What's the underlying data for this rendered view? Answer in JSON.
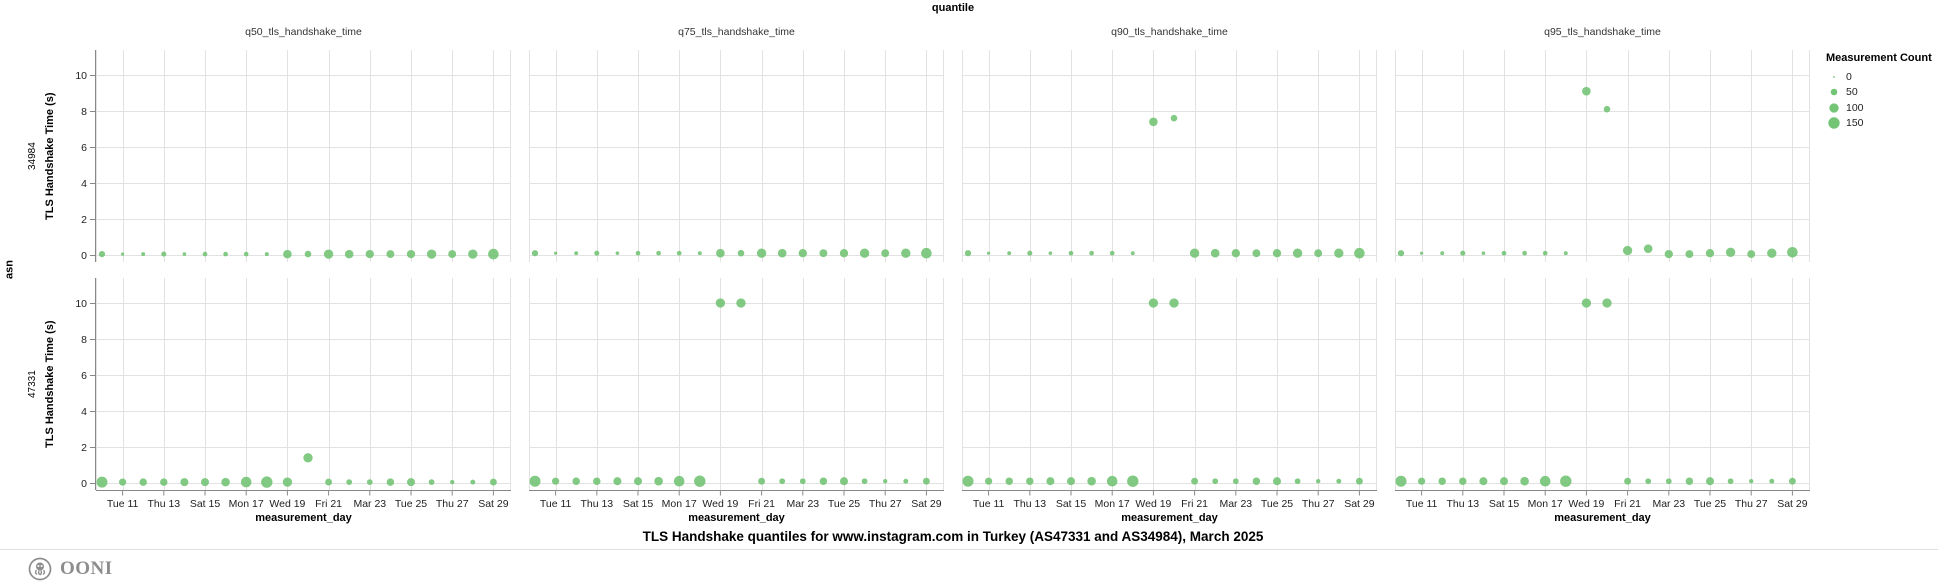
{
  "header": {
    "facet_field_label": "quantile"
  },
  "axes": {
    "y_title": "TLS Handshake Time (s)",
    "x_title": "measurement_day",
    "row_field_label": "asn",
    "y_ticks": [
      0,
      2,
      4,
      6,
      8,
      10
    ]
  },
  "legend": {
    "title": "Measurement Count",
    "items": [
      {
        "label": "0",
        "count": 0
      },
      {
        "label": "50",
        "count": 50
      },
      {
        "label": "100",
        "count": 100
      },
      {
        "label": "150",
        "count": 150
      }
    ]
  },
  "footer": {
    "title": "TLS Handshake quantiles for www.instagram.com in Turkey (AS47331 and AS34984), March 2025",
    "brand": "OONI"
  },
  "colors": {
    "dot": "#74c476",
    "grid": "#e2e2e2",
    "axis": "#888888",
    "text": "#222222",
    "brand_gray": "#8d8d8d"
  },
  "chart_data": {
    "type": "scatter",
    "facet": {
      "column_field": "quantile",
      "row_field": "asn"
    },
    "columns": [
      "q50_tls_handshake_time",
      "q75_tls_handshake_time",
      "q90_tls_handshake_time",
      "q95_tls_handshake_time"
    ],
    "column_keys": [
      "q50",
      "q75",
      "q90",
      "q95"
    ],
    "rows": [
      "34984",
      "47331"
    ],
    "xlabel": "measurement_day",
    "ylabel": "TLS Handshake Time (s)",
    "ylim": [
      0,
      10.8
    ],
    "x_period": "March 2025, days 10-29",
    "grid": true,
    "legend_position": "top-right",
    "size_encoding": {
      "field": "Measurement Count",
      "legend_values": [
        0,
        50,
        100,
        150
      ]
    },
    "x_ticks": [
      {
        "day": 11,
        "label": "Tue 11"
      },
      {
        "day": 13,
        "label": "Thu 13"
      },
      {
        "day": 15,
        "label": "Sat 15"
      },
      {
        "day": 17,
        "label": "Mon 17"
      },
      {
        "day": 19,
        "label": "Wed 19"
      },
      {
        "day": 21,
        "label": "Fri 21"
      },
      {
        "day": 23,
        "label": "Mar 23"
      },
      {
        "day": 25,
        "label": "Tue 25"
      },
      {
        "day": 27,
        "label": "Thu 27"
      },
      {
        "day": 29,
        "label": "Sat 29"
      }
    ],
    "series": [
      {
        "asn": "34984",
        "points": [
          {
            "day": 10,
            "count": 45,
            "q50": 0.05,
            "q75": 0.1,
            "q90": 0.1,
            "q95": 0.1
          },
          {
            "day": 11,
            "count": 12,
            "q50": 0.05,
            "q75": 0.1,
            "q90": 0.1,
            "q95": 0.1
          },
          {
            "day": 12,
            "count": 18,
            "q50": 0.05,
            "q75": 0.1,
            "q90": 0.1,
            "q95": 0.1
          },
          {
            "day": 13,
            "count": 30,
            "q50": 0.05,
            "q75": 0.1,
            "q90": 0.1,
            "q95": 0.1
          },
          {
            "day": 14,
            "count": 15,
            "q50": 0.05,
            "q75": 0.1,
            "q90": 0.1,
            "q95": 0.1
          },
          {
            "day": 15,
            "count": 25,
            "q50": 0.05,
            "q75": 0.1,
            "q90": 0.1,
            "q95": 0.1
          },
          {
            "day": 16,
            "count": 25,
            "q50": 0.05,
            "q75": 0.1,
            "q90": 0.1,
            "q95": 0.1
          },
          {
            "day": 17,
            "count": 25,
            "q50": 0.05,
            "q75": 0.1,
            "q90": 0.1,
            "q95": 0.1
          },
          {
            "day": 18,
            "count": 18,
            "q50": 0.05,
            "q75": 0.1,
            "q90": 0.1,
            "q95": 0.1
          },
          {
            "day": 19,
            "count": 85,
            "q50": 0.05,
            "q75": 0.1,
            "q90": 7.4,
            "q95": 9.1
          },
          {
            "day": 20,
            "count": 50,
            "q50": 0.05,
            "q75": 0.1,
            "q90": 7.6,
            "q95": 8.1
          },
          {
            "day": 21,
            "count": 100,
            "q50": 0.05,
            "q75": 0.1,
            "q90": 0.1,
            "q95": 0.25
          },
          {
            "day": 22,
            "count": 85,
            "q50": 0.05,
            "q75": 0.1,
            "q90": 0.1,
            "q95": 0.35
          },
          {
            "day": 23,
            "count": 80,
            "q50": 0.05,
            "q75": 0.1,
            "q90": 0.1,
            "q95": 0.05
          },
          {
            "day": 24,
            "count": 72,
            "q50": 0.05,
            "q75": 0.1,
            "q90": 0.1,
            "q95": 0.05
          },
          {
            "day": 25,
            "count": 80,
            "q50": 0.05,
            "q75": 0.1,
            "q90": 0.1,
            "q95": 0.1
          },
          {
            "day": 26,
            "count": 100,
            "q50": 0.05,
            "q75": 0.1,
            "q90": 0.1,
            "q95": 0.15
          },
          {
            "day": 27,
            "count": 72,
            "q50": 0.05,
            "q75": 0.1,
            "q90": 0.1,
            "q95": 0.05
          },
          {
            "day": 28,
            "count": 100,
            "q50": 0.05,
            "q75": 0.1,
            "q90": 0.1,
            "q95": 0.1
          },
          {
            "day": 29,
            "count": 130,
            "q50": 0.05,
            "q75": 0.1,
            "q90": 0.1,
            "q95": 0.15
          }
        ]
      },
      {
        "asn": "47331",
        "points": [
          {
            "day": 10,
            "count": 140,
            "q50": 0.05,
            "q75": 0.1,
            "q90": 0.1,
            "q95": 0.1
          },
          {
            "day": 11,
            "count": 60,
            "q50": 0.05,
            "q75": 0.1,
            "q90": 0.1,
            "q95": 0.1
          },
          {
            "day": 12,
            "count": 65,
            "q50": 0.05,
            "q75": 0.1,
            "q90": 0.1,
            "q95": 0.1
          },
          {
            "day": 13,
            "count": 65,
            "q50": 0.05,
            "q75": 0.1,
            "q90": 0.1,
            "q95": 0.1
          },
          {
            "day": 14,
            "count": 75,
            "q50": 0.05,
            "q75": 0.1,
            "q90": 0.1,
            "q95": 0.1
          },
          {
            "day": 15,
            "count": 75,
            "q50": 0.05,
            "q75": 0.1,
            "q90": 0.1,
            "q95": 0.1
          },
          {
            "day": 16,
            "count": 85,
            "q50": 0.05,
            "q75": 0.1,
            "q90": 0.1,
            "q95": 0.1
          },
          {
            "day": 17,
            "count": 130,
            "q50": 0.05,
            "q75": 0.1,
            "q90": 0.1,
            "q95": 0.1
          },
          {
            "day": 18,
            "count": 150,
            "q50": 0.05,
            "q75": 0.1,
            "q90": 0.1,
            "q95": 0.1
          },
          {
            "day": 19,
            "count": 100,
            "q50": 0.05,
            "q75": 10.0,
            "q90": 10.0,
            "q95": 10.0
          },
          {
            "day": 20,
            "count": 100,
            "q50": 1.4,
            "q75": 10.0,
            "q90": 10.0,
            "q95": 10.0
          },
          {
            "day": 21,
            "count": 55,
            "q50": 0.05,
            "q75": 0.1,
            "q90": 0.1,
            "q95": 0.1
          },
          {
            "day": 22,
            "count": 38,
            "q50": 0.05,
            "q75": 0.1,
            "q90": 0.1,
            "q95": 0.1
          },
          {
            "day": 23,
            "count": 38,
            "q50": 0.05,
            "q75": 0.1,
            "q90": 0.1,
            "q95": 0.1
          },
          {
            "day": 24,
            "count": 65,
            "q50": 0.05,
            "q75": 0.1,
            "q90": 0.1,
            "q95": 0.1
          },
          {
            "day": 25,
            "count": 75,
            "q50": 0.05,
            "q75": 0.1,
            "q90": 0.1,
            "q95": 0.1
          },
          {
            "day": 26,
            "count": 38,
            "q50": 0.05,
            "q75": 0.1,
            "q90": 0.1,
            "q95": 0.1
          },
          {
            "day": 27,
            "count": 22,
            "q50": 0.05,
            "q75": 0.1,
            "q90": 0.1,
            "q95": 0.1
          },
          {
            "day": 28,
            "count": 28,
            "q50": 0.05,
            "q75": 0.1,
            "q90": 0.1,
            "q95": 0.1
          },
          {
            "day": 29,
            "count": 55,
            "q50": 0.05,
            "q75": 0.1,
            "q90": 0.1,
            "q95": 0.1
          }
        ]
      }
    ]
  }
}
